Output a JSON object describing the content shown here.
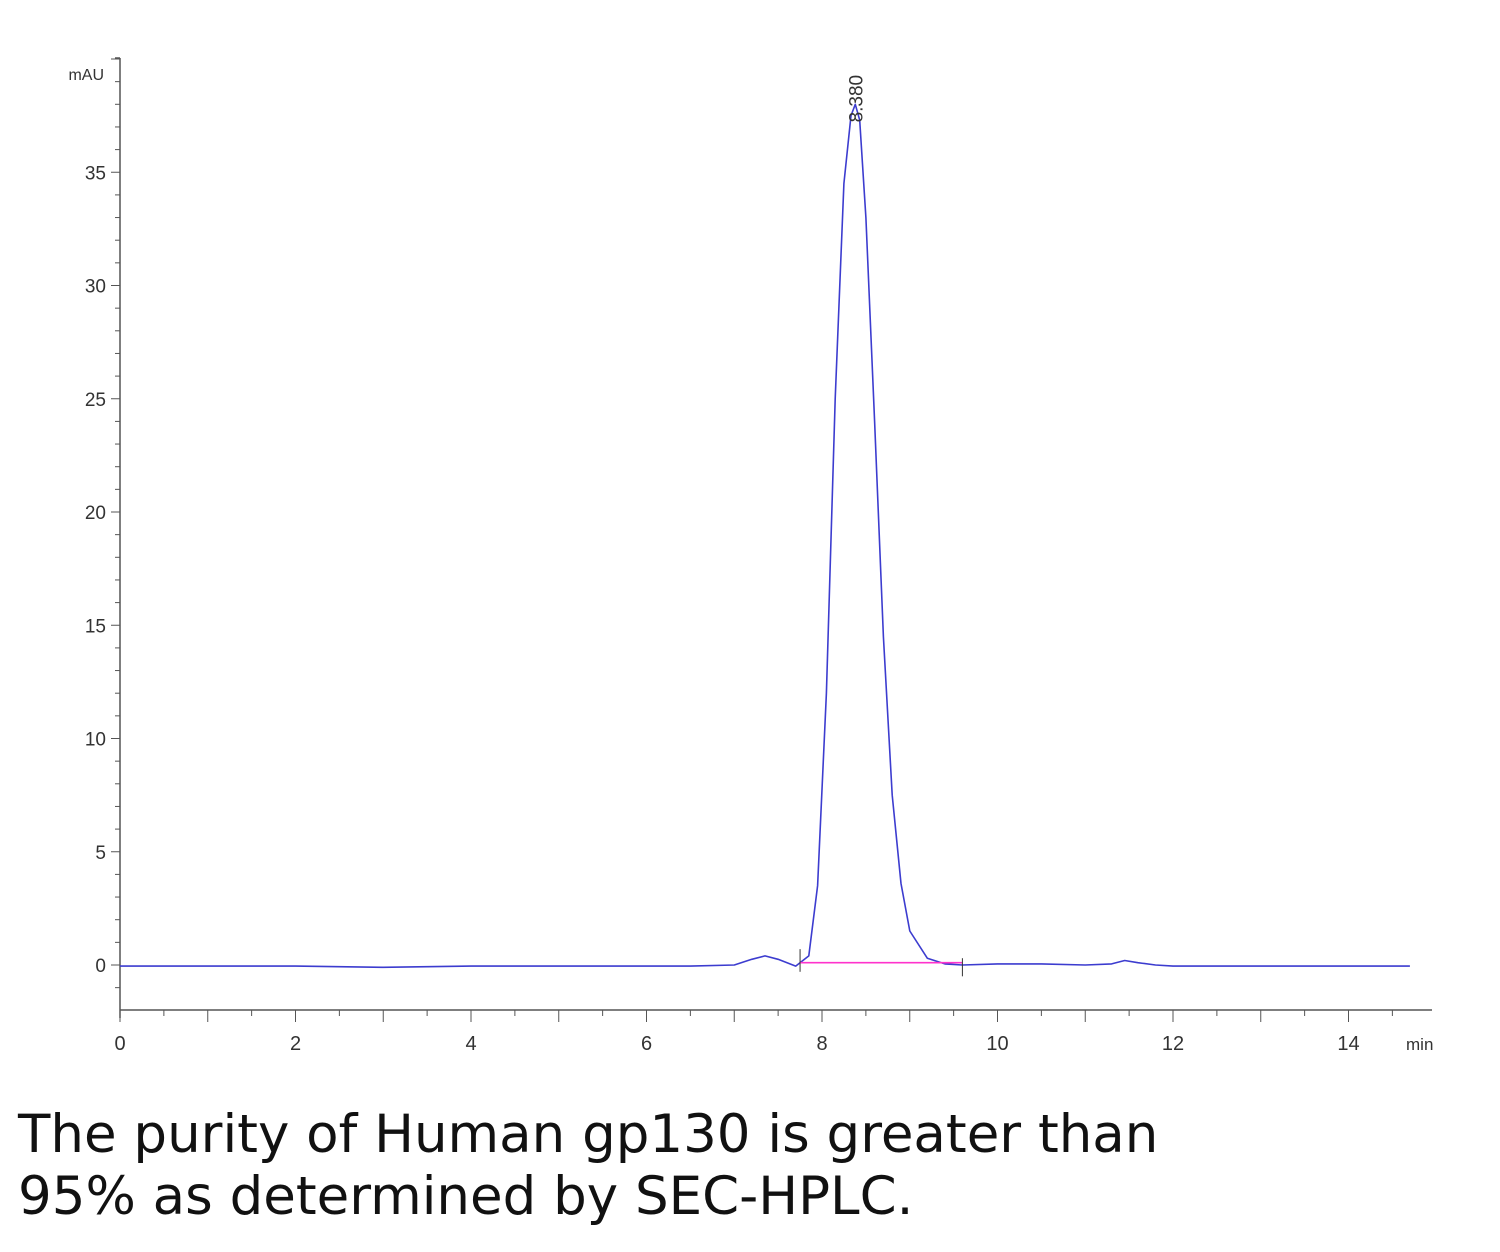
{
  "chart_data": {
    "type": "line",
    "ylabel": "mAU",
    "xlabel": "min",
    "xlim": [
      0,
      15
    ],
    "ylim": [
      -2,
      40
    ],
    "x_ticks": [
      0,
      2,
      4,
      6,
      8,
      10,
      12,
      14
    ],
    "y_ticks": [
      0,
      5,
      10,
      15,
      20,
      25,
      30,
      35
    ],
    "peak_label": "8.380",
    "series": [
      {
        "color": "#3c3ccf",
        "x": [
          0,
          1,
          2,
          3,
          4,
          5,
          6,
          6.5,
          7.0,
          7.2,
          7.35,
          7.5,
          7.7,
          7.85,
          7.95,
          8.05,
          8.15,
          8.25,
          8.33,
          8.38,
          8.43,
          8.5,
          8.6,
          8.7,
          8.8,
          8.9,
          9.0,
          9.2,
          9.4,
          9.6,
          10,
          10.5,
          11,
          11.3,
          11.45,
          11.6,
          11.8,
          12,
          13,
          14,
          14.7
        ],
        "y": [
          -0.05,
          -0.05,
          -0.05,
          -0.1,
          -0.05,
          -0.05,
          -0.05,
          -0.05,
          0.0,
          0.25,
          0.4,
          0.25,
          -0.05,
          0.4,
          3.5,
          12.0,
          25.0,
          34.5,
          37.5,
          38.0,
          37.3,
          33.0,
          24.0,
          14.5,
          7.5,
          3.6,
          1.5,
          0.3,
          0.05,
          0.0,
          0.05,
          0.05,
          0.0,
          0.05,
          0.2,
          0.1,
          0.0,
          -0.05,
          -0.05,
          -0.05,
          -0.05
        ]
      }
    ],
    "baseline": {
      "color": "#ff33cc",
      "x": [
        7.75,
        9.6
      ],
      "y": [
        0.1,
        0.1
      ]
    }
  },
  "caption": {
    "line1": "The purity of Human gp130 is greater than",
    "line2": "95% as determined by SEC-HPLC."
  }
}
